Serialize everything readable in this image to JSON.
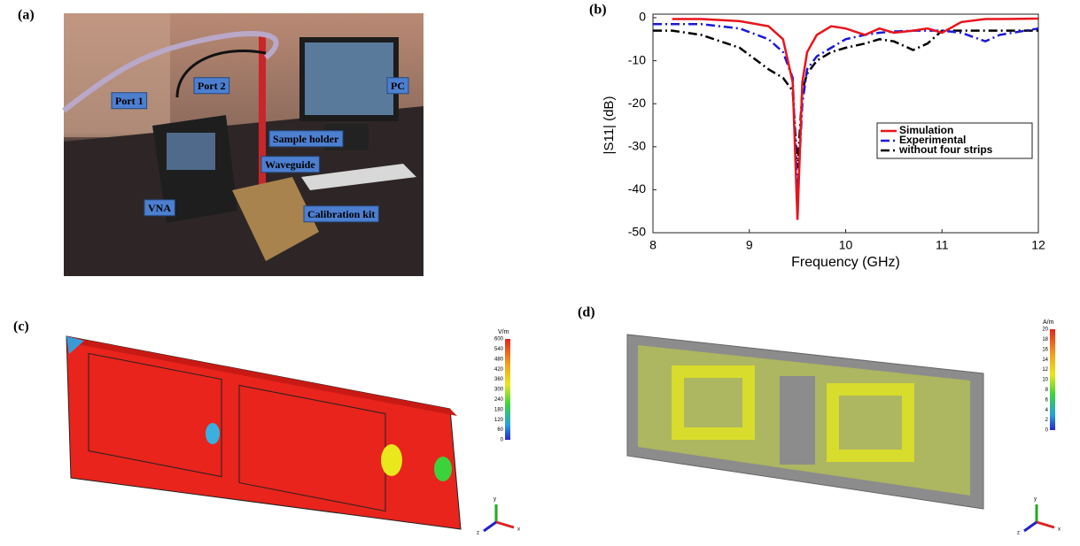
{
  "panels": {
    "a": "(a)",
    "b": "(b)",
    "c": "(c)",
    "d": "(d)"
  },
  "photo_labels": [
    "Port 1",
    "Port 2",
    "PC",
    "Sample holder",
    "Waveguide",
    "VNA",
    "Calibration kit"
  ],
  "colorbar_c": {
    "unit": "V/m",
    "ticks": [
      600,
      540,
      480,
      420,
      360,
      300,
      240,
      180,
      120,
      60,
      0
    ]
  },
  "colorbar_d": {
    "unit": "A/m",
    "ticks": [
      20,
      18,
      16,
      14,
      12,
      10,
      8,
      6,
      4,
      2,
      0
    ]
  },
  "triad": [
    "x",
    "y",
    "z"
  ],
  "chart_data": {
    "type": "line",
    "x_label": "Frequency (GHz)",
    "y_label": "|S11| (dB)",
    "x": [
      8,
      8.2,
      8.5,
      8.9,
      9.2,
      9.35,
      9.45,
      9.5,
      9.55,
      9.6,
      9.7,
      9.85,
      10,
      10.2,
      10.35,
      10.5,
      10.7,
      10.85,
      11,
      11.2,
      11.45,
      11.6,
      12
    ],
    "series": [
      {
        "name": "Simulation",
        "color": "#e8141c",
        "dash": "",
        "values": [
          null,
          -0.3,
          -0.3,
          -0.8,
          -2,
          -5,
          -15,
          -47,
          -15,
          -8,
          -4,
          -2,
          -2.5,
          -4,
          -2.5,
          -3.5,
          -3,
          -2.5,
          -3.5,
          -1,
          -0.3,
          -0.3,
          -0.2
        ]
      },
      {
        "name": "Experimental",
        "color": "#1a1ad6",
        "dash": "10 4 2 4",
        "values": [
          -1.5,
          -1.5,
          -1.5,
          -2.5,
          -5,
          -8,
          -14,
          -42,
          -20,
          -12,
          -9,
          -7,
          -5,
          -4,
          -3.5,
          -3.2,
          -3,
          -3,
          -3,
          -3.5,
          -5.5,
          -4,
          -2.5
        ]
      },
      {
        "name": "without four strips",
        "color": "#000000",
        "dash": "10 4 2 4",
        "values": [
          -3,
          -3,
          -4,
          -7,
          -12,
          -14,
          -17,
          -35,
          -17,
          -13,
          -10,
          -8,
          -7,
          -6,
          -5,
          -5.5,
          -7.5,
          -6,
          -3,
          -3,
          -3,
          -3,
          -3
        ]
      }
    ],
    "xlim": [
      8,
      12
    ],
    "ylim": [
      -50,
      0
    ],
    "xticks": [
      8,
      9,
      10,
      11,
      12
    ],
    "yticks": [
      -50,
      -40,
      -30,
      -20,
      -10,
      0
    ],
    "legend": "right"
  }
}
